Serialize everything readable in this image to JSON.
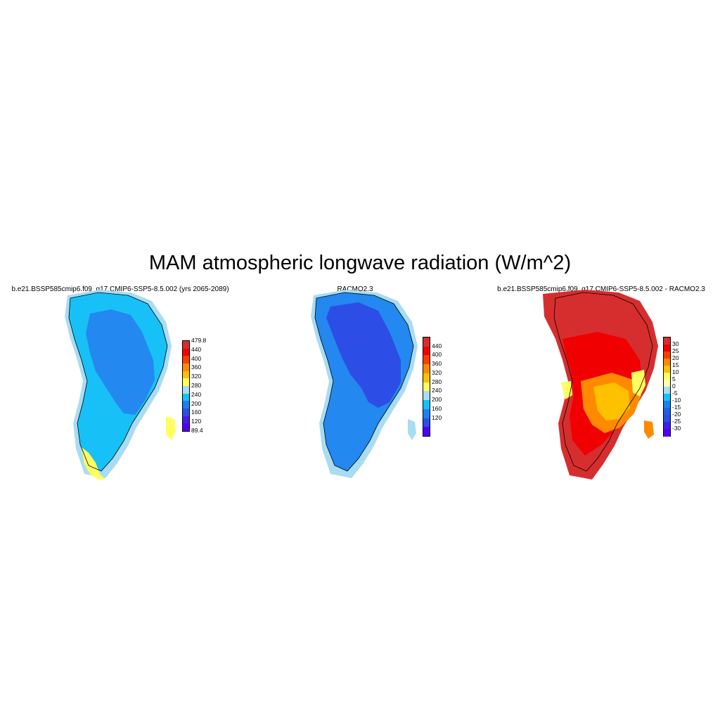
{
  "figure": {
    "title": "MAM atmospheric longwave radiation (W/m^2)"
  },
  "panels": [
    {
      "id": "model",
      "title": "b.e21.BSSP585cmip6.f09_g17.CMIP6-SSP5-8.5.002 (yrs 2065-2089)",
      "colorbar": {
        "labels": [
          "479.8",
          "440",
          "400",
          "360",
          "320",
          "280",
          "240",
          "200",
          "160",
          "120",
          "89.4"
        ],
        "colors": [
          "#d62e2e",
          "#f00000",
          "#ff3d00",
          "#ff8a00",
          "#ffc000",
          "#ffff60",
          "#a8dcf0",
          "#16c0f8",
          "#1c80f0",
          "#2850e8",
          "#4020e8",
          "#5000f8"
        ]
      },
      "fields": {
        "interior_color": "#2388f0",
        "outer_color": "#18c0f8",
        "edge_color": "#a8dcf0",
        "warm_color": "#ffff60"
      }
    },
    {
      "id": "obs",
      "title": "RACMO2.3",
      "colorbar": {
        "labels": [
          "440",
          "400",
          "360",
          "320",
          "280",
          "240",
          "200",
          "160",
          "120"
        ],
        "colors": [
          "#d62e2e",
          "#f00000",
          "#ff3d00",
          "#ff8a00",
          "#ffc000",
          "#ffff60",
          "#a8dcf0",
          "#16c0f8",
          "#1c80f0",
          "#2850e8",
          "#5000f8"
        ]
      },
      "fields": {
        "interior_color": "#2c4ee6",
        "outer_color": "#2388f0",
        "edge_color": "#a8dcf0"
      }
    },
    {
      "id": "diff",
      "title": "b.e21.BSSP585cmip6.f09_g17.CMIP6-SSP5-8.5.002 - RACMO2.3",
      "colorbar": {
        "labels": [
          "30",
          "25",
          "20",
          "15",
          "10",
          "5",
          "0",
          "-5",
          "-10",
          "-15",
          "-20",
          "-25",
          "-30"
        ],
        "colors": [
          "#d62e2e",
          "#f00000",
          "#ff3d00",
          "#ff8a00",
          "#ffc000",
          "#ffff60",
          "#ffffb0",
          "#a8dcf0",
          "#16c0f8",
          "#1c80f0",
          "#2060e8",
          "#2850e8",
          "#4020e8",
          "#5000f8"
        ]
      },
      "fields": {
        "dominant_color": "#d62e2e",
        "secondary_color": "#f00000",
        "warm_color": "#ff8a00",
        "hot_color": "#ffc000",
        "pale_color": "#ffff60"
      }
    }
  ]
}
